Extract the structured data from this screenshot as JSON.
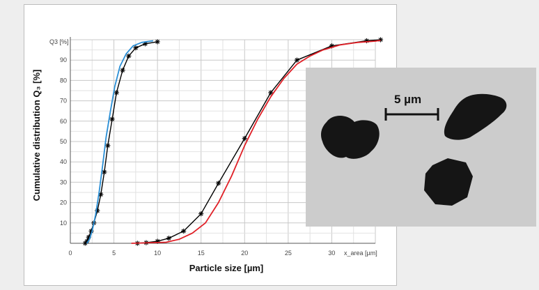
{
  "chart_data": {
    "type": "line",
    "xlabel": "Particle size [µm]",
    "ylabel": "Cumulative distribution Q₃ [%]",
    "y_axis_unit_label": "Q3 [%]",
    "x_axis_unit_label": "x_area [µm]",
    "xlim": [
      0,
      35
    ],
    "ylim": [
      0,
      100
    ],
    "x_ticks": [
      "0",
      "5",
      "10",
      "15",
      "20",
      "25",
      "30"
    ],
    "y_ticks": [
      "10",
      "20",
      "30",
      "40",
      "50",
      "60",
      "70",
      "80",
      "90"
    ],
    "grid": true,
    "series": [
      {
        "group": "fine",
        "style": "black-star",
        "color": "#000000",
        "x": [
          1.7,
          1.9,
          2.1,
          2.4,
          2.7,
          3.1,
          3.5,
          3.9,
          4.3,
          4.8,
          5.3,
          6.0,
          6.7,
          7.5,
          8.6,
          10.0
        ],
        "y": [
          0,
          1,
          3,
          6,
          10,
          16,
          24,
          35,
          48,
          61,
          74,
          85,
          92,
          96,
          98,
          99
        ]
      },
      {
        "group": "fine",
        "style": "blue-line",
        "color": "#2a8fd6",
        "x": [
          1.9,
          2.2,
          2.5,
          2.9,
          3.3,
          3.7,
          4.1,
          4.6,
          5.1,
          5.7,
          6.4,
          7.2,
          8.2,
          9.5
        ],
        "y": [
          0,
          2,
          6,
          14,
          25,
          38,
          52,
          65,
          77,
          87,
          93,
          97,
          98.7,
          99.5
        ]
      },
      {
        "group": "coarse",
        "style": "black-star",
        "color": "#000000",
        "x": [
          7.7,
          8.7,
          10.0,
          11.3,
          13.0,
          15.0,
          17.0,
          20.0,
          23.0,
          26.0,
          30.0,
          34.0,
          38.0
        ],
        "y": [
          0,
          0.3,
          1,
          2.5,
          6,
          14.5,
          29.5,
          51.5,
          74,
          90,
          97,
          99.5,
          100
        ]
      },
      {
        "group": "coarse",
        "style": "red-line",
        "color": "#e01f26",
        "x": [
          7.0,
          11.0,
          12.5,
          14.0,
          15.5,
          17.0,
          18.5,
          20.0,
          21.5,
          23.0,
          24.5,
          26.0,
          27.5,
          29.0,
          31.0,
          33.0,
          35.0,
          38.0
        ],
        "y": [
          0,
          0.5,
          2,
          5,
          10,
          20,
          33,
          48,
          61,
          72,
          81,
          88,
          92,
          95,
          97.5,
          98.7,
          99.3,
          99.7
        ]
      }
    ]
  },
  "micrograph": {
    "scale_label": "5 µm",
    "background_color": "#cccccc",
    "particle_color": "#151515"
  }
}
